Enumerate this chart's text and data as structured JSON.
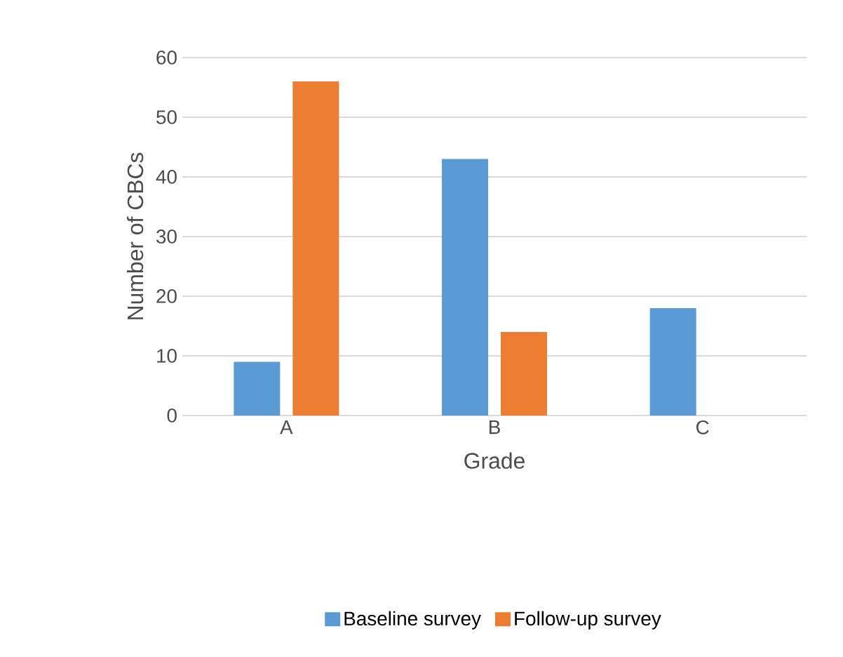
{
  "chart_data": {
    "type": "bar",
    "xlabel": "Grade",
    "ylabel": "Number of CBCs",
    "categories": [
      "A",
      "B",
      "C"
    ],
    "series": [
      {
        "name": "Baseline survey",
        "color": "#5b9bd5",
        "values": [
          9,
          43,
          18
        ]
      },
      {
        "name": "Follow-up survey",
        "color": "#ed7d31",
        "values": [
          56,
          14,
          0
        ]
      }
    ],
    "ylim": [
      0,
      60
    ],
    "yticks": [
      0,
      10,
      20,
      30,
      40,
      50,
      60
    ],
    "grid": "y",
    "legend": "bottom"
  }
}
